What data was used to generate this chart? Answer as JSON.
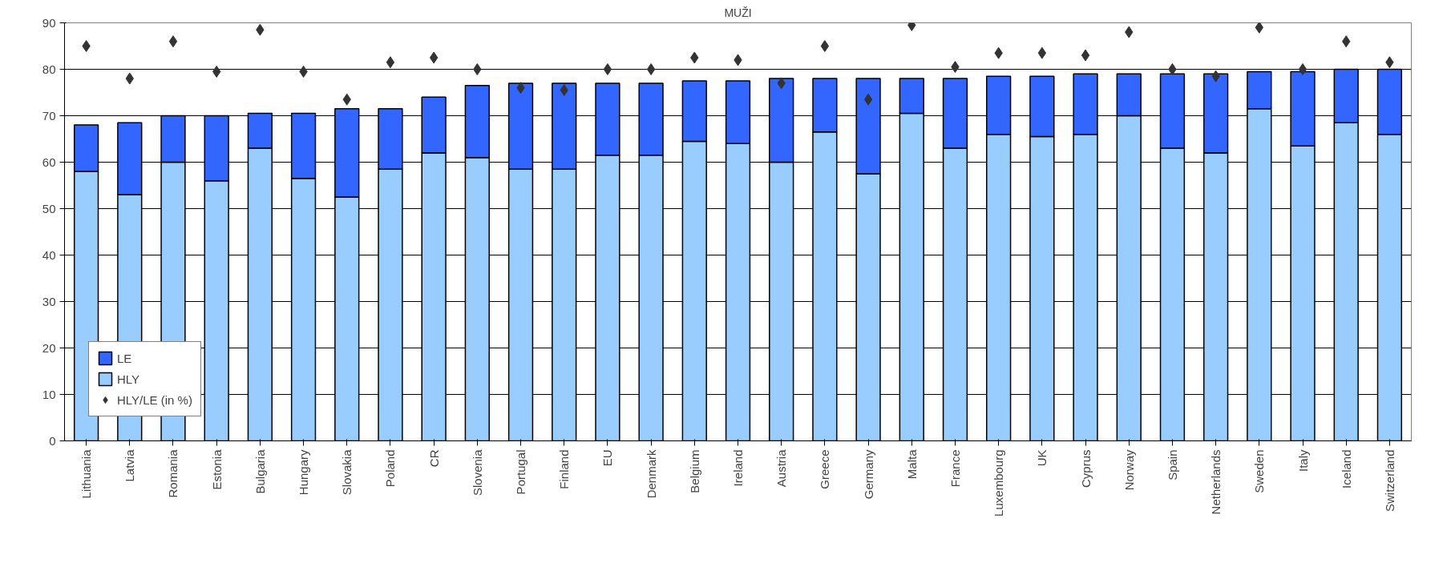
{
  "chart_data": {
    "type": "bar",
    "title": "MUŽI",
    "stacked": true,
    "categories": [
      "Lithuania",
      "Latvia",
      "Romania",
      "Estonia",
      "Bulgaria",
      "Hungary",
      "Slovakia",
      "Poland",
      "CR",
      "Slovenia",
      "Portugal",
      "Finland",
      "EU",
      "Denmark",
      "Belgium",
      "Ireland",
      "Austria",
      "Greece",
      "Germany",
      "Malta",
      "France",
      "Luxembourg",
      "UK",
      "Cyprus",
      "Norway",
      "Spain",
      "Netherlands",
      "Sweden",
      "Italy",
      "Iceland",
      "Switzerland"
    ],
    "series": [
      {
        "name": "HLY",
        "color": "#99ccff",
        "values": [
          58,
          53,
          60,
          56,
          63,
          56.5,
          52.5,
          58.5,
          62,
          61,
          58.5,
          58.5,
          61.5,
          61.5,
          64.5,
          64,
          60,
          66.5,
          57.5,
          70.5,
          63,
          66,
          65.5,
          66,
          70,
          63,
          62,
          71.5,
          63.5,
          68.5,
          66
        ]
      },
      {
        "name": "LE",
        "color": "#3366ff",
        "values": [
          10,
          15.5,
          10,
          14,
          7.5,
          14,
          19,
          13,
          12,
          15.5,
          18.5,
          18.5,
          15.5,
          15.5,
          13,
          13.5,
          18,
          11.5,
          20.5,
          7.5,
          15,
          12.5,
          13,
          13,
          9,
          16,
          17,
          8,
          16,
          11.5,
          14
        ]
      },
      {
        "name": "HLY/LE (in %)",
        "type": "scatter",
        "color": "#333333",
        "values": [
          85,
          78,
          86,
          79.5,
          88.5,
          79.5,
          73.5,
          81.5,
          82.5,
          80,
          76,
          75.5,
          80,
          80,
          82.5,
          82,
          77,
          85,
          73.5,
          89.5,
          80.5,
          83.5,
          83.5,
          83,
          88,
          80,
          78.5,
          89,
          80,
          86,
          81.5
        ]
      }
    ],
    "ylim": [
      0,
      90
    ],
    "yticks": [
      0,
      10,
      20,
      30,
      40,
      50,
      60,
      70,
      80,
      90
    ],
    "grid": "y",
    "legend": "bottom left",
    "marker": "diamond"
  }
}
